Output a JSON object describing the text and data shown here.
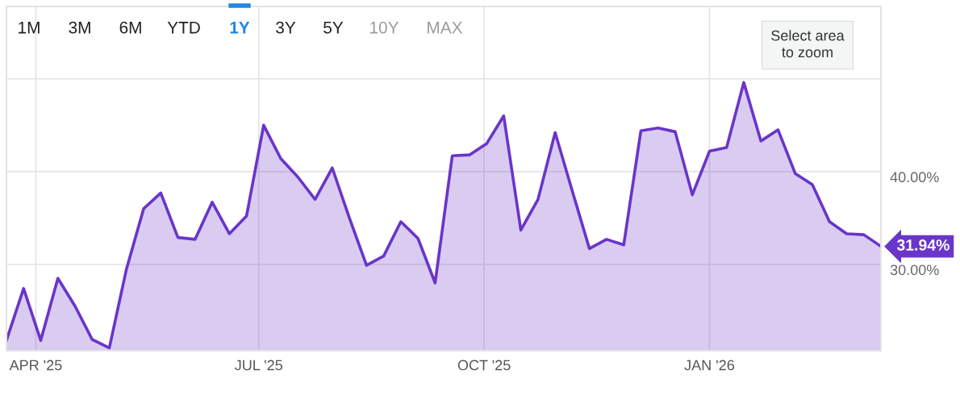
{
  "chart_data": {
    "type": "area",
    "annotations": [
      "1M",
      "3M",
      "6M",
      "YTD",
      "1Y",
      "3Y",
      "5Y",
      "10Y",
      "MAX",
      "Select area\nto zoom"
    ],
    "x": [
      "2025-03-20",
      "2025-03-27",
      "2025-04-03",
      "2025-04-10",
      "2025-04-17",
      "2025-04-24",
      "2025-05-01",
      "2025-05-08",
      "2025-05-15",
      "2025-05-22",
      "2025-05-29",
      "2025-06-05",
      "2025-06-12",
      "2025-06-19",
      "2025-06-26",
      "2025-07-03",
      "2025-07-10",
      "2025-07-17",
      "2025-07-24",
      "2025-07-31",
      "2025-08-07",
      "2025-08-14",
      "2025-08-21",
      "2025-08-28",
      "2025-09-04",
      "2025-09-11",
      "2025-09-18",
      "2025-09-25",
      "2025-10-02",
      "2025-10-09",
      "2025-10-16",
      "2025-10-23",
      "2025-10-30",
      "2025-11-06",
      "2025-11-13",
      "2025-11-20",
      "2025-11-27",
      "2025-12-04",
      "2025-12-11",
      "2025-12-18",
      "2025-12-25",
      "2026-01-01",
      "2026-01-08",
      "2026-01-15",
      "2026-01-22",
      "2026-01-29",
      "2026-02-05",
      "2026-02-12",
      "2026-02-19",
      "2026-02-26",
      "2026-03-05",
      "2026-03-12"
    ],
    "series": [
      {
        "color": "#6a35c9",
        "values": [
          21.8,
          27.4,
          21.8,
          28.5,
          25.5,
          21.9,
          21.0,
          29.5,
          36.0,
          37.7,
          32.9,
          32.7,
          36.7,
          33.3,
          35.2,
          45.0,
          41.4,
          39.4,
          37.0,
          40.4,
          35.0,
          29.9,
          30.9,
          34.6,
          32.8,
          28.0,
          41.7,
          41.8,
          43.0,
          46.0,
          33.7,
          37.0,
          44.2,
          37.9,
          31.7,
          32.7,
          32.1,
          44.4,
          44.7,
          44.3,
          37.5,
          42.2,
          42.6,
          49.6,
          43.3,
          44.5,
          39.8,
          38.6,
          34.6,
          33.3,
          33.2,
          31.94
        ],
        "value_labels": [
          null,
          null,
          null,
          null,
          null,
          null,
          null,
          null,
          null,
          null,
          null,
          null,
          null,
          null,
          null,
          null,
          null,
          null,
          null,
          null,
          null,
          null,
          null,
          null,
          null,
          null,
          null,
          null,
          null,
          null,
          null,
          null,
          null,
          null,
          null,
          null,
          null,
          null,
          null,
          null,
          null,
          null,
          null,
          null,
          null,
          null,
          null,
          null,
          null,
          null,
          null,
          "31.94%"
        ]
      }
    ],
    "xlim": [
      "2025-03-20",
      "2026-03-12"
    ],
    "xticks": [
      {
        "value": "2025-04-01",
        "label": "APR '25"
      },
      {
        "value": "2025-07-01",
        "label": "JUL '25"
      },
      {
        "value": "2025-10-01",
        "label": "OCT '25"
      },
      {
        "value": "2026-01-01",
        "label": "JAN '26"
      }
    ],
    "ylim": [
      20.7,
      57.8
    ],
    "yticks": [
      {
        "value": 30,
        "label": "30.00%"
      },
      {
        "value": 40,
        "label": "40.00%"
      },
      {
        "value": 50,
        "label": null
      }
    ],
    "grid": true,
    "legend": false
  }
}
